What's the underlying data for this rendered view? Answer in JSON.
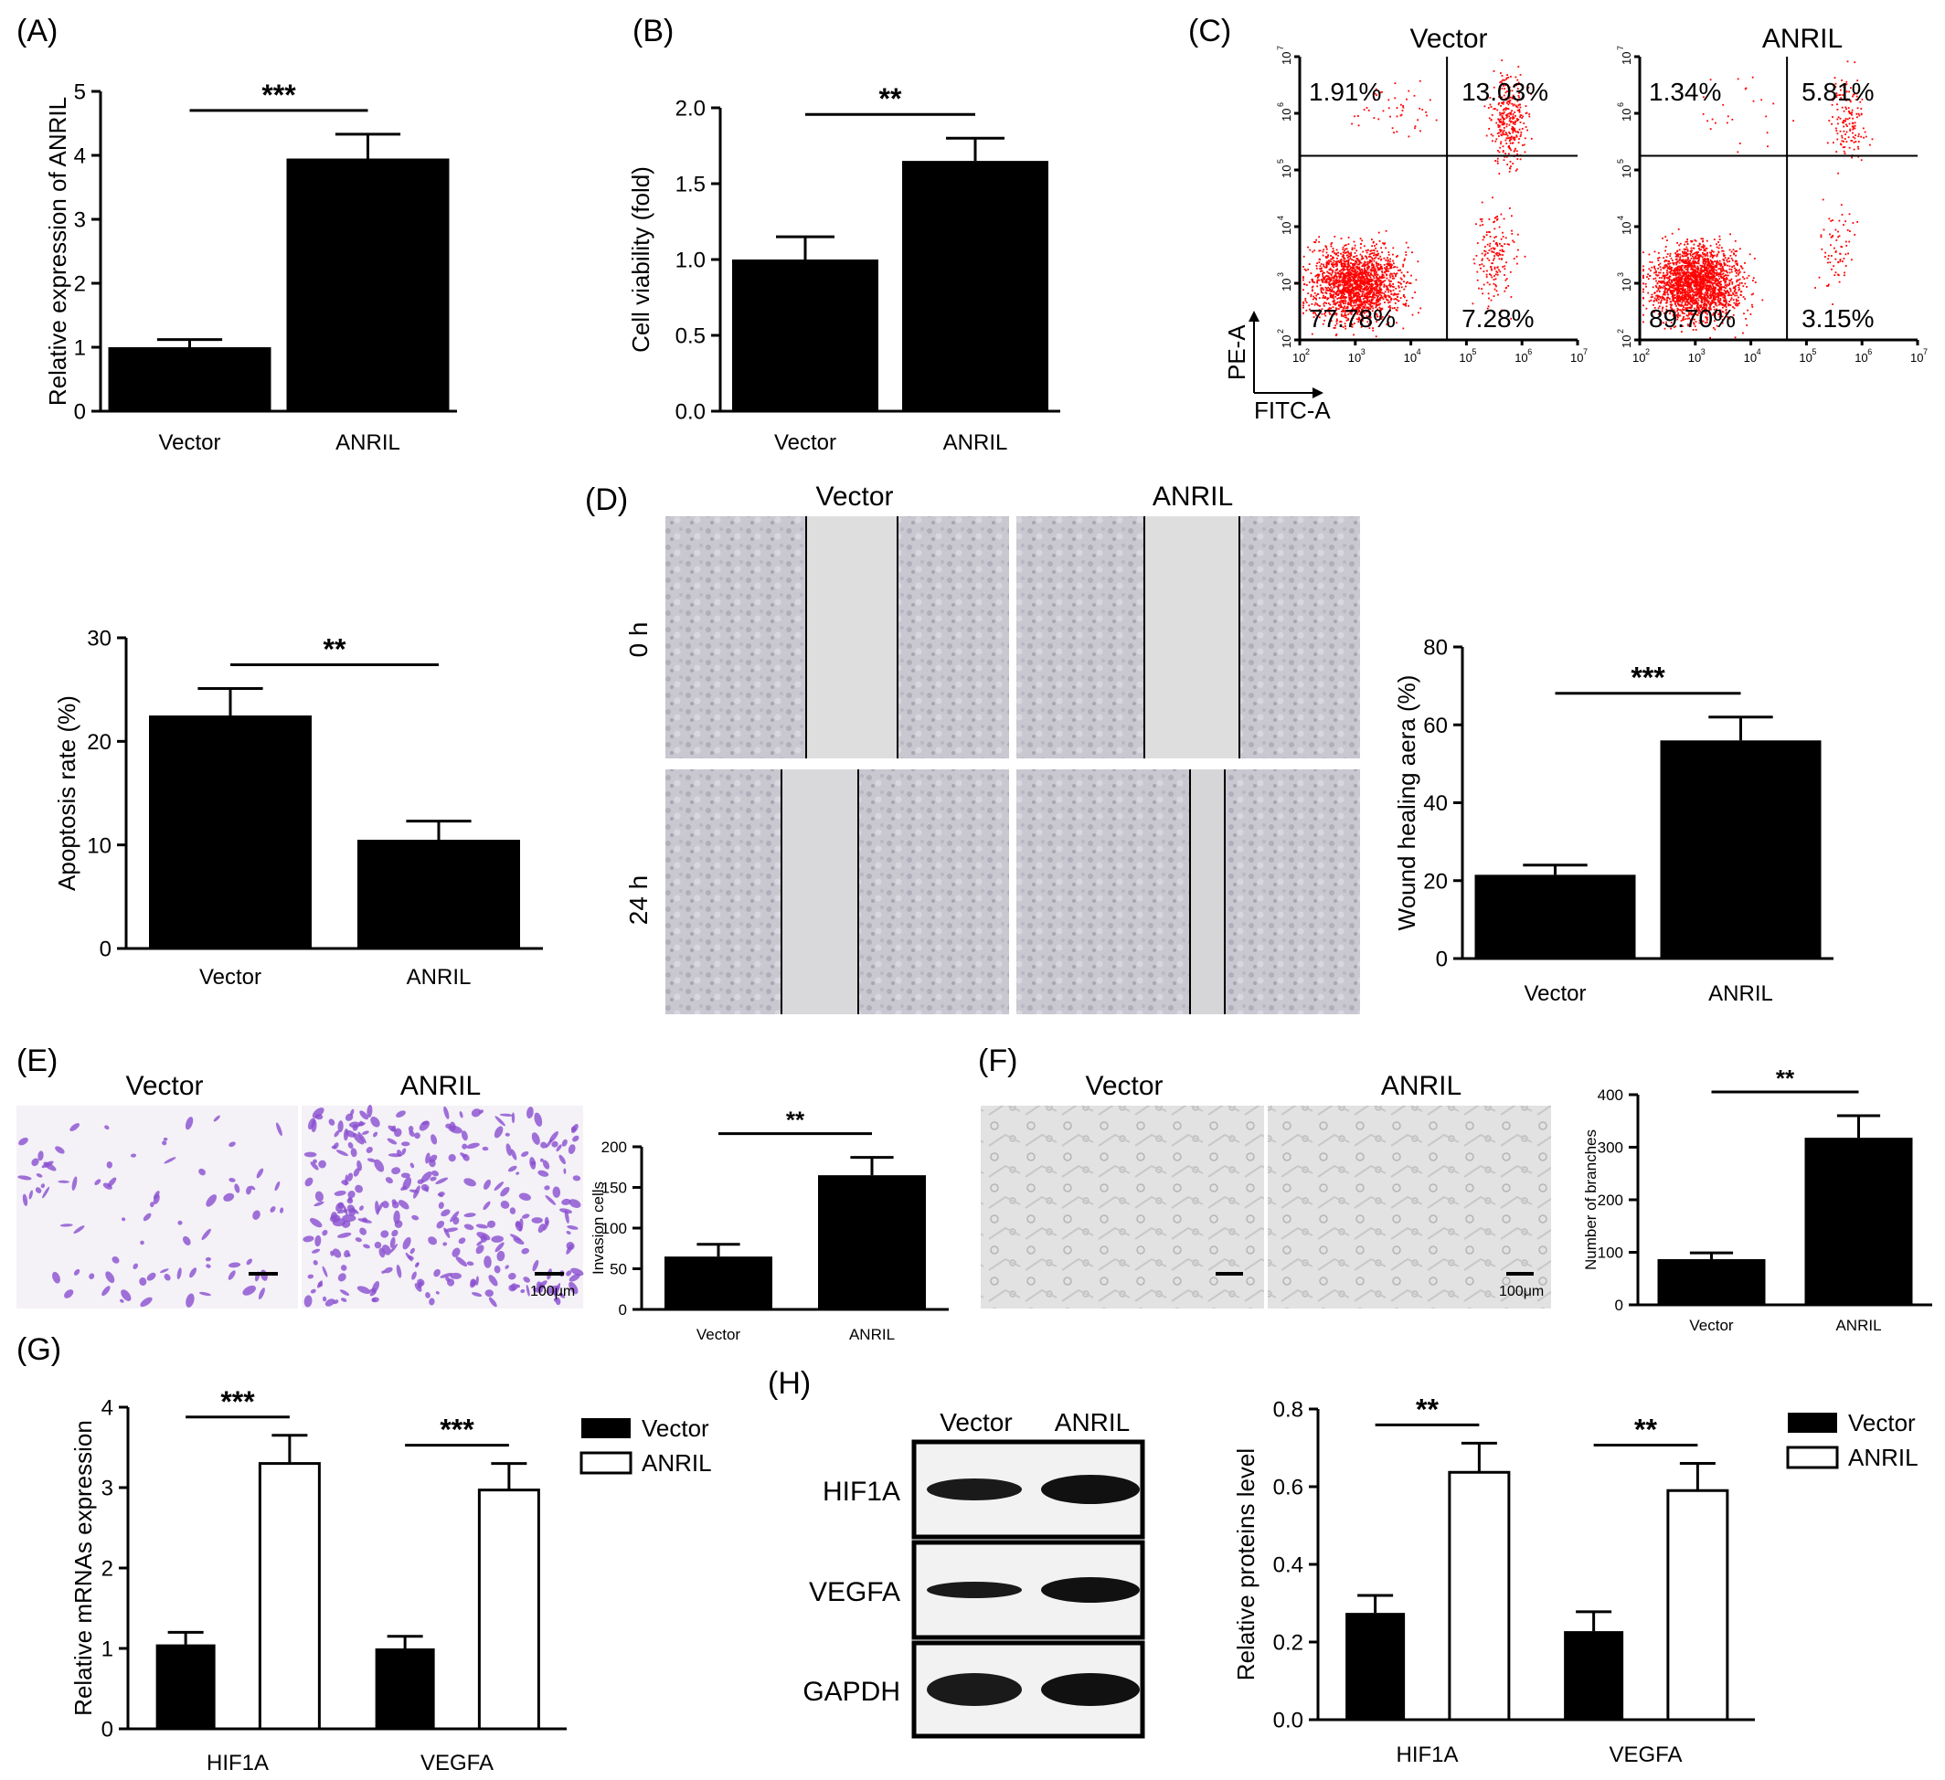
{
  "panels": {
    "A": {
      "label": "(A)",
      "chart_data": {
        "type": "bar",
        "categories": [
          "Vector",
          "ANRIL"
        ],
        "values": [
          1.0,
          3.95
        ],
        "errors": [
          0.12,
          0.38
        ],
        "ylabel": "Relative expression of ANRIL",
        "ylim": [
          0,
          5
        ],
        "yticks": [
          "0",
          "1",
          "2",
          "3",
          "4",
          "5"
        ],
        "significance": "***"
      }
    },
    "B": {
      "label": "(B)",
      "chart_data": {
        "type": "bar",
        "categories": [
          "Vector",
          "ANRIL"
        ],
        "values": [
          1.0,
          1.65
        ],
        "errors": [
          0.15,
          0.15
        ],
        "ylabel": "Cell viability (fold)",
        "ylim": [
          0,
          2
        ],
        "yticks": [
          "0.0",
          "0.5",
          "1.0",
          "1.5",
          "2.0"
        ],
        "significance": "**"
      }
    },
    "C": {
      "label": "(C)",
      "plots": [
        {
          "title": "Vector",
          "quadrants": {
            "ul": "1.91%",
            "ur": "13.03%",
            "ll": "77.78%",
            "lr": "7.28%"
          }
        },
        {
          "title": "ANRIL",
          "quadrants": {
            "ul": "1.34%",
            "ur": "5.81%",
            "ll": "89.70%",
            "lr": "3.15%"
          }
        }
      ],
      "ylabel": "PE-A",
      "xlabel": "FITC-A",
      "ticks": [
        "10",
        "10",
        "10",
        "10",
        "10",
        "10"
      ],
      "tick_exps": [
        "2",
        "3",
        "4",
        "5",
        "6",
        "7"
      ],
      "dot_color": "#ff0000"
    },
    "apoptosis": {
      "chart_data": {
        "type": "bar",
        "categories": [
          "Vector",
          "ANRIL"
        ],
        "values": [
          22.5,
          10.5
        ],
        "errors": [
          2.6,
          1.8
        ],
        "ylabel": "Apoptosis rate (%)",
        "ylim": [
          0,
          30
        ],
        "yticks": [
          "0",
          "10",
          "20",
          "30"
        ],
        "significance": "**"
      }
    },
    "D": {
      "label": "(D)",
      "col_labels": [
        "Vector",
        "ANRIL"
      ],
      "row_labels": [
        "0 h",
        "24 h"
      ],
      "chart_data": {
        "type": "bar",
        "categories": [
          "Vector",
          "ANRIL"
        ],
        "values": [
          21.5,
          56
        ],
        "errors": [
          2.5,
          6
        ],
        "ylabel": "Wound healing aera (%)",
        "ylim": [
          0,
          80
        ],
        "yticks": [
          "0",
          "20",
          "40",
          "60",
          "80"
        ],
        "significance": "***"
      }
    },
    "E": {
      "label": "(E)",
      "col_labels": [
        "Vector",
        "ANRIL"
      ],
      "scale_label": "100μm",
      "stain_color": "#8a4fd0",
      "chart_data": {
        "type": "bar",
        "categories": [
          "Vector",
          "ANRIL"
        ],
        "values": [
          65,
          165
        ],
        "errors": [
          15,
          22
        ],
        "ylabel": "Invasion cells",
        "ylim": [
          0,
          200
        ],
        "yticks": [
          "0",
          "50",
          "100",
          "150",
          "200"
        ],
        "significance": "**"
      }
    },
    "F": {
      "label": "(F)",
      "col_labels": [
        "Vector",
        "ANRIL"
      ],
      "scale_label": "100μm",
      "chart_data": {
        "type": "bar",
        "categories": [
          "Vector",
          "ANRIL"
        ],
        "values": [
          87,
          318
        ],
        "errors": [
          12,
          42
        ],
        "ylabel": "Number of branches",
        "ylim": [
          0,
          400
        ],
        "yticks": [
          "0",
          "100",
          "200",
          "300",
          "400"
        ],
        "significance": "**"
      }
    },
    "G": {
      "label": "(G)",
      "chart_data": {
        "type": "bar",
        "categories": [
          "HIF1A",
          "VEGFA"
        ],
        "series": [
          {
            "name": "Vector",
            "values": [
              1.05,
              1.0
            ],
            "errors": [
              0.15,
              0.15
            ]
          },
          {
            "name": "ANRIL",
            "values": [
              3.3,
              2.97
            ],
            "errors": [
              0.35,
              0.33
            ]
          }
        ],
        "ylabel": "Relative mRNAs expression",
        "ylim": [
          0,
          4
        ],
        "yticks": [
          "0",
          "1",
          "2",
          "3",
          "4"
        ],
        "significance": [
          "***",
          "***"
        ]
      }
    },
    "H": {
      "label": "(H)",
      "blot_cols": [
        "Vector",
        "ANRIL"
      ],
      "blot_rows": [
        "HIF1A",
        "VEGFA",
        "GAPDH"
      ],
      "chart_data": {
        "type": "bar",
        "categories": [
          "HIF1A",
          "VEGFA"
        ],
        "series": [
          {
            "name": "Vector",
            "values": [
              0.275,
              0.228
            ],
            "errors": [
              0.045,
              0.05
            ]
          },
          {
            "name": "ANRIL",
            "values": [
              0.637,
              0.59
            ],
            "errors": [
              0.075,
              0.07
            ]
          }
        ],
        "ylabel": "Relative proteins level",
        "ylim": [
          0,
          0.8
        ],
        "yticks": [
          "0.0",
          "0.2",
          "0.4",
          "0.6",
          "0.8"
        ],
        "significance": [
          "**",
          "**"
        ]
      }
    }
  }
}
